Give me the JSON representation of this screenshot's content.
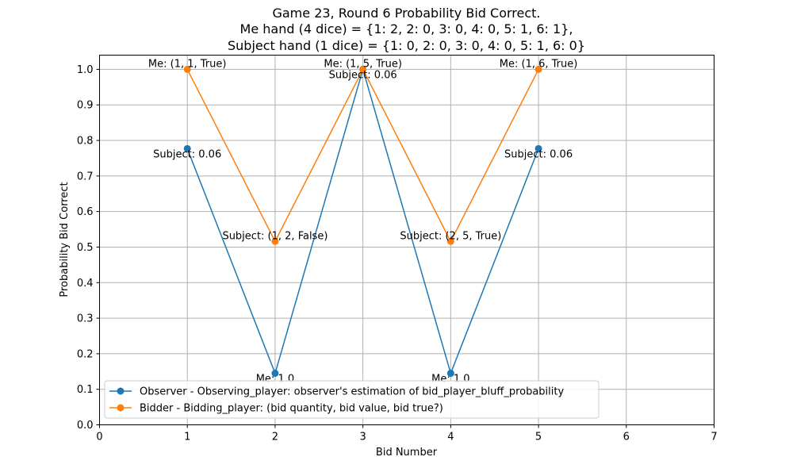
{
  "chart_data": {
    "type": "line",
    "title_lines": [
      "Game 23, Round 6 Probability Bid Correct.",
      "Me hand (4 dice) = {1: 2, 2: 0, 3: 0, 4: 0, 5: 1, 6: 1},",
      "Subject hand (1 dice) = {1: 0, 2: 0, 3: 0, 4: 0, 5: 1, 6: 0}"
    ],
    "xlabel": "Bid Number",
    "ylabel": "Probability Bid Correct",
    "xlim": [
      0,
      7
    ],
    "ylim": [
      0,
      1.04
    ],
    "x_ticks": [
      0,
      1,
      2,
      3,
      4,
      5,
      6,
      7
    ],
    "y_ticks": [
      0.0,
      0.1,
      0.2,
      0.3,
      0.4,
      0.5,
      0.6,
      0.7,
      0.8,
      0.9,
      1.0
    ],
    "grid": true,
    "legend_position": "bottom-left",
    "series": [
      {
        "name": "Observer - Observing_player: observer's estimation of bid_player_bluff_probability",
        "color": "#1f77b4",
        "x": [
          1,
          2,
          3,
          4,
          5
        ],
        "y": [
          0.777,
          0.145,
          1.0,
          0.145,
          0.777
        ]
      },
      {
        "name": "Bidder -  Bidding_player: (bid quantity, bid value, bid true?)",
        "color": "#ff7f0e",
        "x": [
          1,
          2,
          3,
          4,
          5
        ],
        "y": [
          1.0,
          0.516,
          1.0,
          0.516,
          1.0
        ]
      }
    ],
    "annotations": [
      {
        "text": "Subject: 0.06",
        "x": 1,
        "y": 0.777,
        "pos": "below"
      },
      {
        "text": "Me: 1.0",
        "x": 2,
        "y": 0.145,
        "pos": "below"
      },
      {
        "text": "Subject: 0.06",
        "x": 3,
        "y": 1.0,
        "pos": "below"
      },
      {
        "text": "Me: 1.0",
        "x": 4,
        "y": 0.145,
        "pos": "below"
      },
      {
        "text": "Subject: 0.06",
        "x": 5,
        "y": 0.777,
        "pos": "below"
      },
      {
        "text": "Me: (1, 1, True)",
        "x": 1,
        "y": 1.0,
        "pos": "above"
      },
      {
        "text": "Subject: (1, 2, False)",
        "x": 2,
        "y": 0.516,
        "pos": "above"
      },
      {
        "text": "Me: (1, 5, True)",
        "x": 3,
        "y": 1.0,
        "pos": "above"
      },
      {
        "text": "Subject: (2, 5, True)",
        "x": 4,
        "y": 0.516,
        "pos": "above"
      },
      {
        "text": "Me: (1, 6, True)",
        "x": 5,
        "y": 1.0,
        "pos": "above"
      }
    ]
  }
}
